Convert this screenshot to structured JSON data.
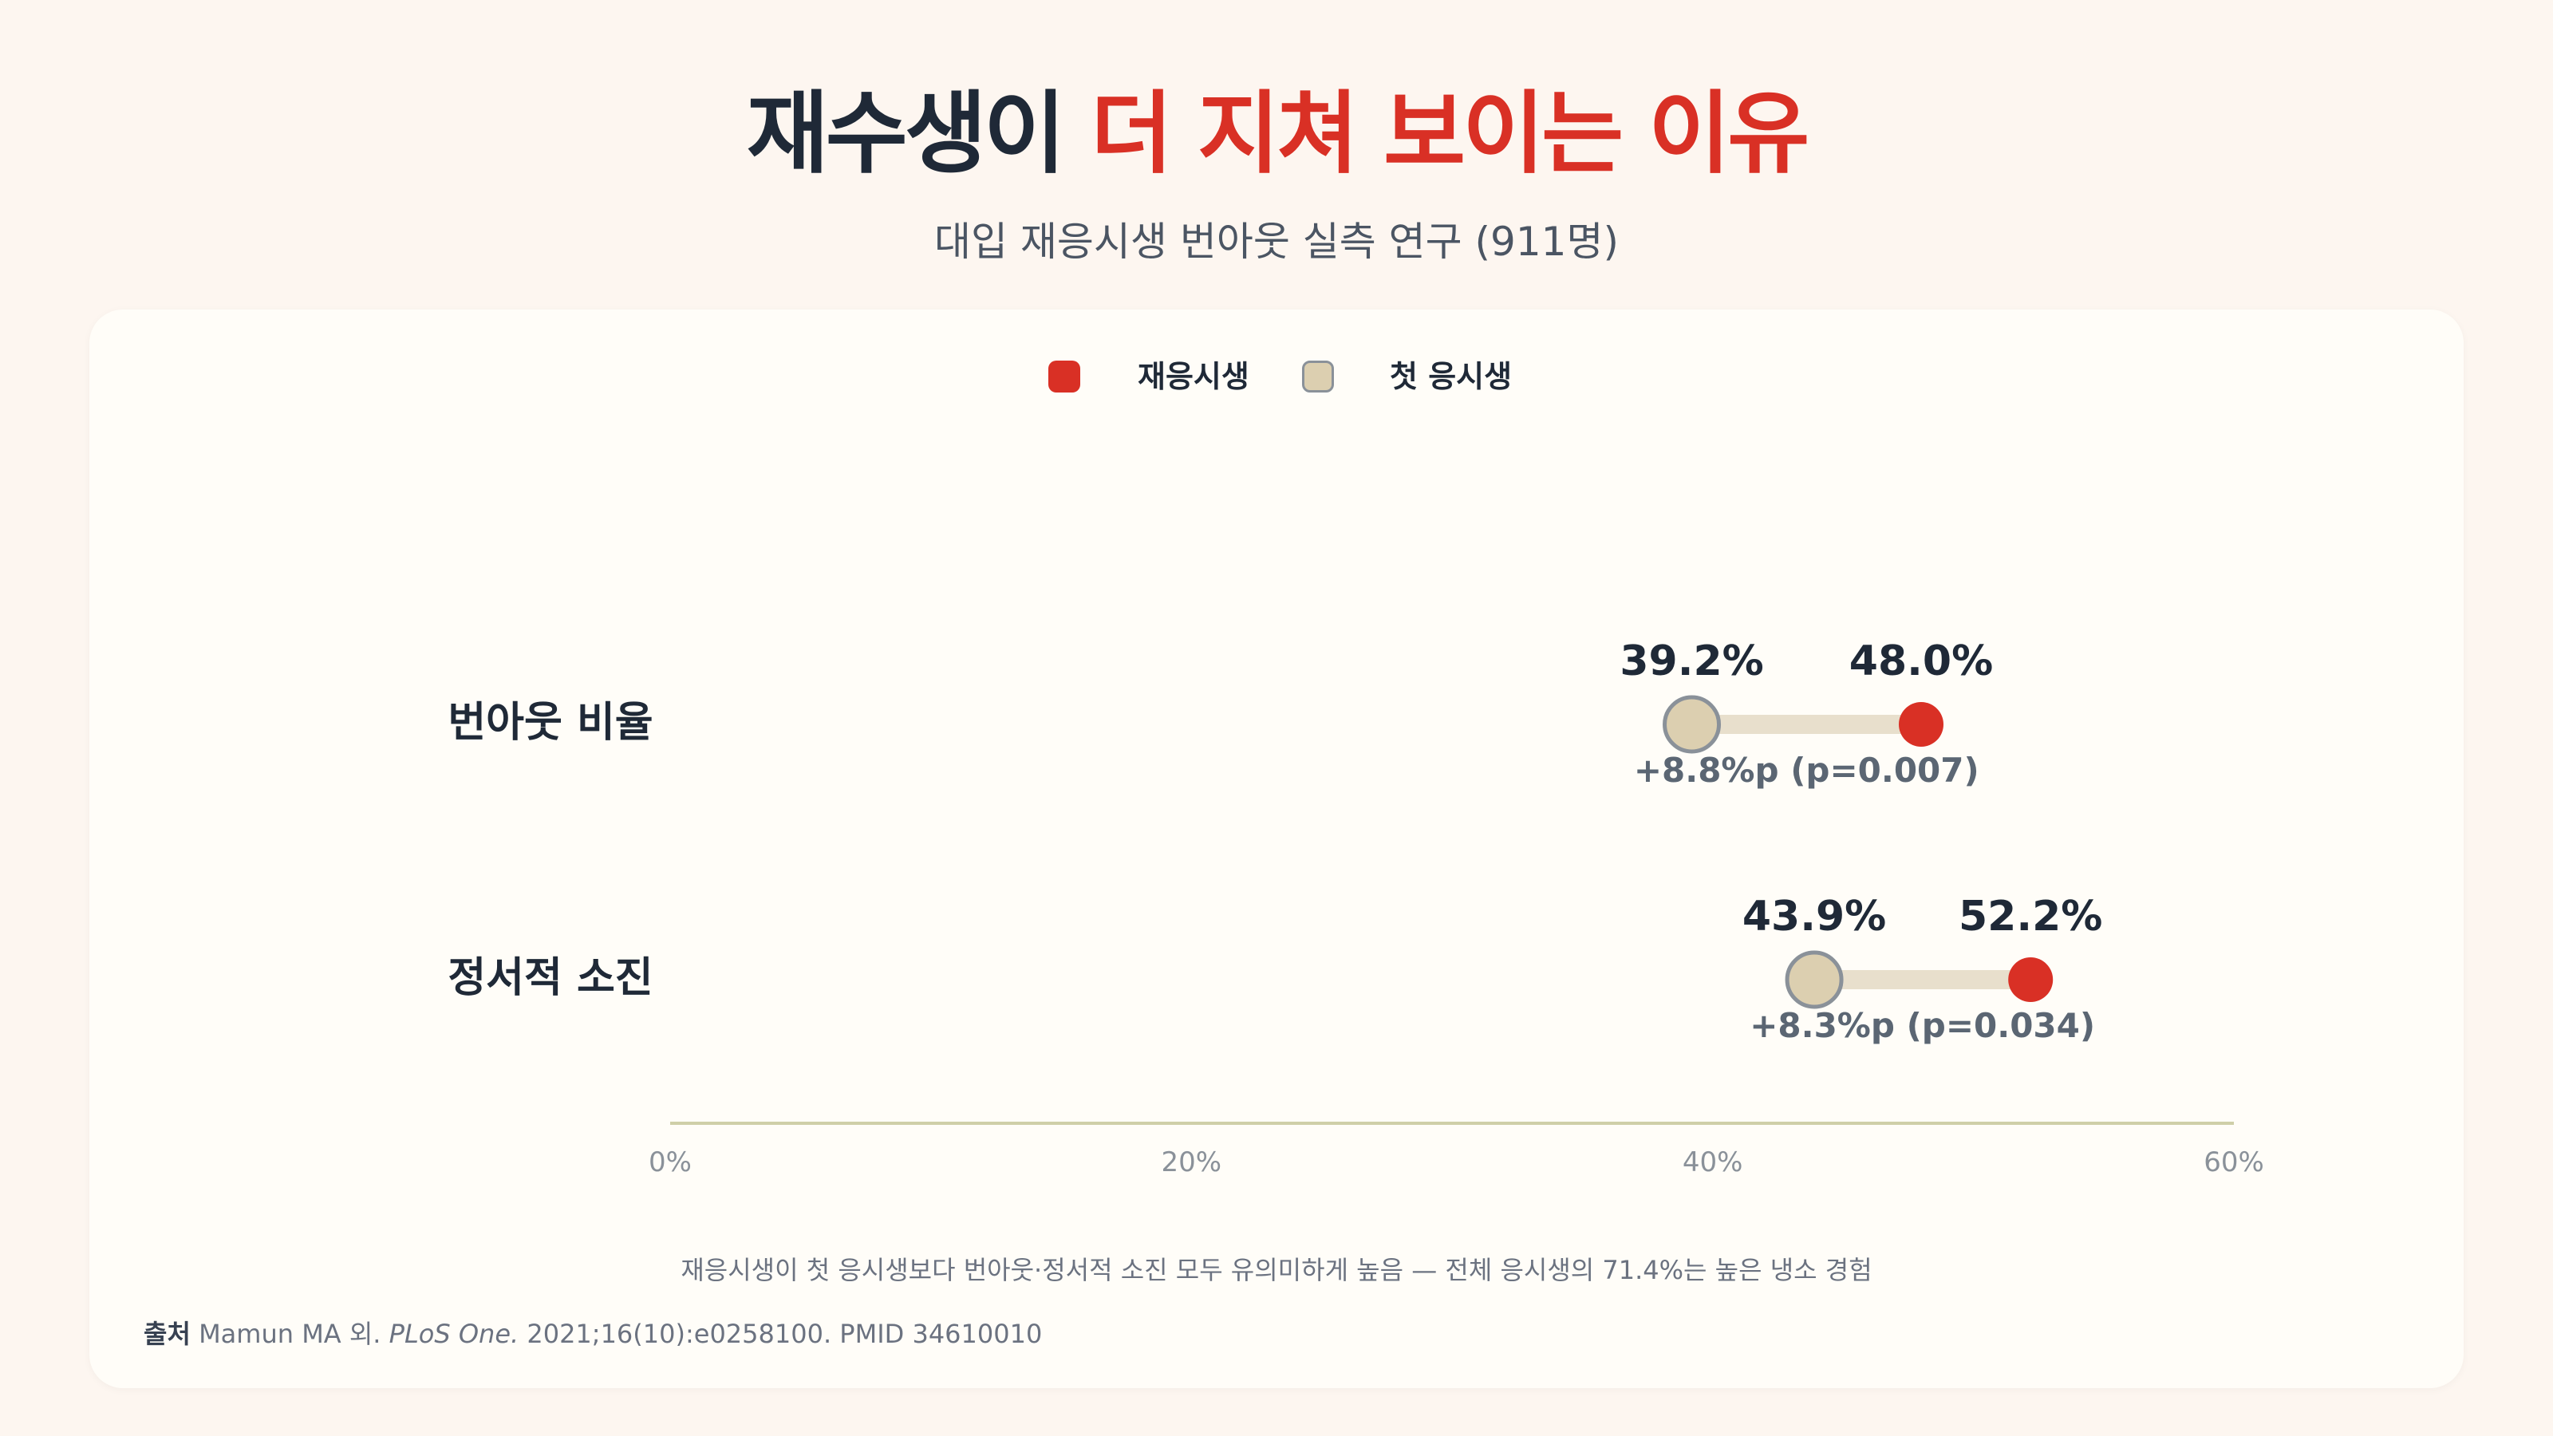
{
  "header": {
    "title_dark": "재수생이",
    "title_red": "더 지쳐 보이는 이유",
    "subtitle": "대입 재응시생 번아웃 실측 연구 (911명)"
  },
  "legend": {
    "items": [
      {
        "label": "재응시생",
        "color": "#d93025"
      },
      {
        "label": "첫 응시생",
        "color": "#dccfb0"
      }
    ]
  },
  "chart_data": {
    "type": "dumbbell",
    "categories": [
      "번아웃 비율",
      "정서적 소진"
    ],
    "series": [
      {
        "name": "첫 응시생",
        "values": [
          39.2,
          43.9
        ]
      },
      {
        "name": "재응시생",
        "values": [
          48.0,
          52.2
        ]
      }
    ],
    "value_labels": {
      "first": [
        "39.2%",
        "43.9%"
      ],
      "repeat": [
        "48.0%",
        "52.2%"
      ]
    },
    "differences": [
      "+8.8%p (p=0.007)",
      "+8.3%p (p=0.034)"
    ],
    "xlim": [
      0,
      60
    ],
    "x_ticks": [
      0,
      20,
      40,
      60
    ],
    "x_tick_labels": [
      "0%",
      "20%",
      "40%",
      "60%"
    ],
    "colors": {
      "repeat": "#d93025",
      "first": "#dccfb0",
      "first_stroke": "#8a9199",
      "connector": "#e8dfcc",
      "axis": "#cfcfa8"
    }
  },
  "footer": {
    "note": "재응시생이 첫 응시생보다 번아웃·정서적 소진 모두 유의미하게 높음 — 전체 응시생의 71.4%는 높은 냉소 경험",
    "source_label": "출처",
    "source_authors": "Mamun MA 외.",
    "source_journal": "PLoS One.",
    "source_detail": "2021;16(10):e0258100. PMID 34610010"
  }
}
